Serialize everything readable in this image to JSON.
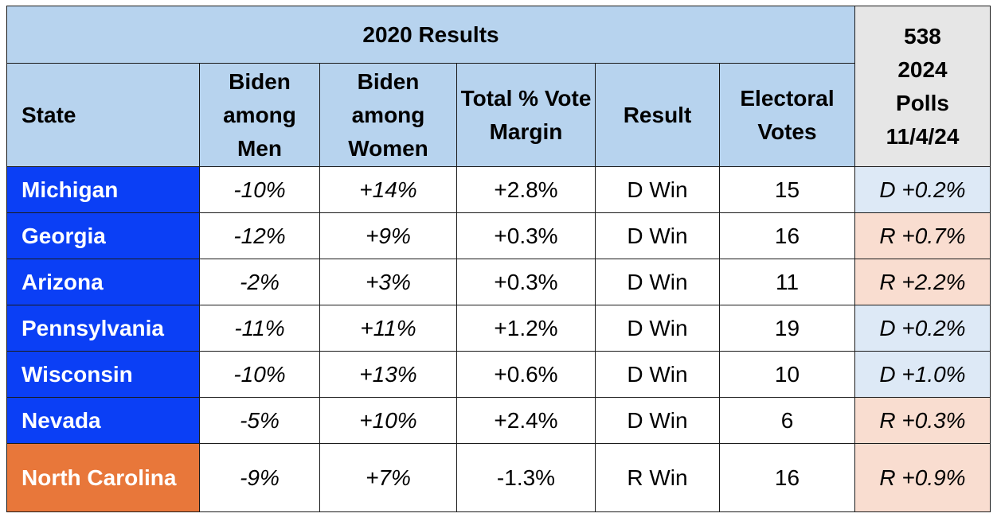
{
  "table": {
    "group_header": "2020 Results",
    "poll_header": "538\n2024\nPolls\n11/4/24",
    "columns": [
      "State",
      "Biden among Men",
      "Biden among Women",
      "Total % Vote Margin",
      "Result",
      "Electoral Votes"
    ],
    "rows": [
      {
        "state": "Michigan",
        "party": "D",
        "men": "-10%",
        "women": "+14%",
        "margin": "+2.8%",
        "result": "D Win",
        "ev": "15",
        "poll": "D +0.2%",
        "poll_lean": "D"
      },
      {
        "state": "Georgia",
        "party": "D",
        "men": "-12%",
        "women": "+9%",
        "margin": "+0.3%",
        "result": "D Win",
        "ev": "16",
        "poll": "R +0.7%",
        "poll_lean": "R"
      },
      {
        "state": "Arizona",
        "party": "D",
        "men": "-2%",
        "women": "+3%",
        "margin": "+0.3%",
        "result": "D Win",
        "ev": "11",
        "poll": "R +2.2%",
        "poll_lean": "R"
      },
      {
        "state": "Pennsylvania",
        "party": "D",
        "men": "-11%",
        "women": "+11%",
        "margin": "+1.2%",
        "result": "D Win",
        "ev": "19",
        "poll": "D +0.2%",
        "poll_lean": "D"
      },
      {
        "state": "Wisconsin",
        "party": "D",
        "men": "-10%",
        "women": "+13%",
        "margin": "+0.6%",
        "result": "D Win",
        "ev": "10",
        "poll": "D +1.0%",
        "poll_lean": "D"
      },
      {
        "state": "Nevada",
        "party": "D",
        "men": "-5%",
        "women": "+10%",
        "margin": "+2.4%",
        "result": "D Win",
        "ev": "6",
        "poll": "R +0.3%",
        "poll_lean": "R"
      },
      {
        "state": "North Carolina",
        "party": "R",
        "men": "-9%",
        "women": "+7%",
        "margin": "-1.3%",
        "result": "R Win",
        "ev": "16",
        "poll": "R +0.9%",
        "poll_lean": "R"
      }
    ]
  },
  "colors": {
    "header_blue": "#b7d3ee",
    "dem_state": "#0b3ff5",
    "rep_state": "#e8773a",
    "poll_dem": "#dde9f6",
    "poll_rep": "#f9ddd0"
  }
}
